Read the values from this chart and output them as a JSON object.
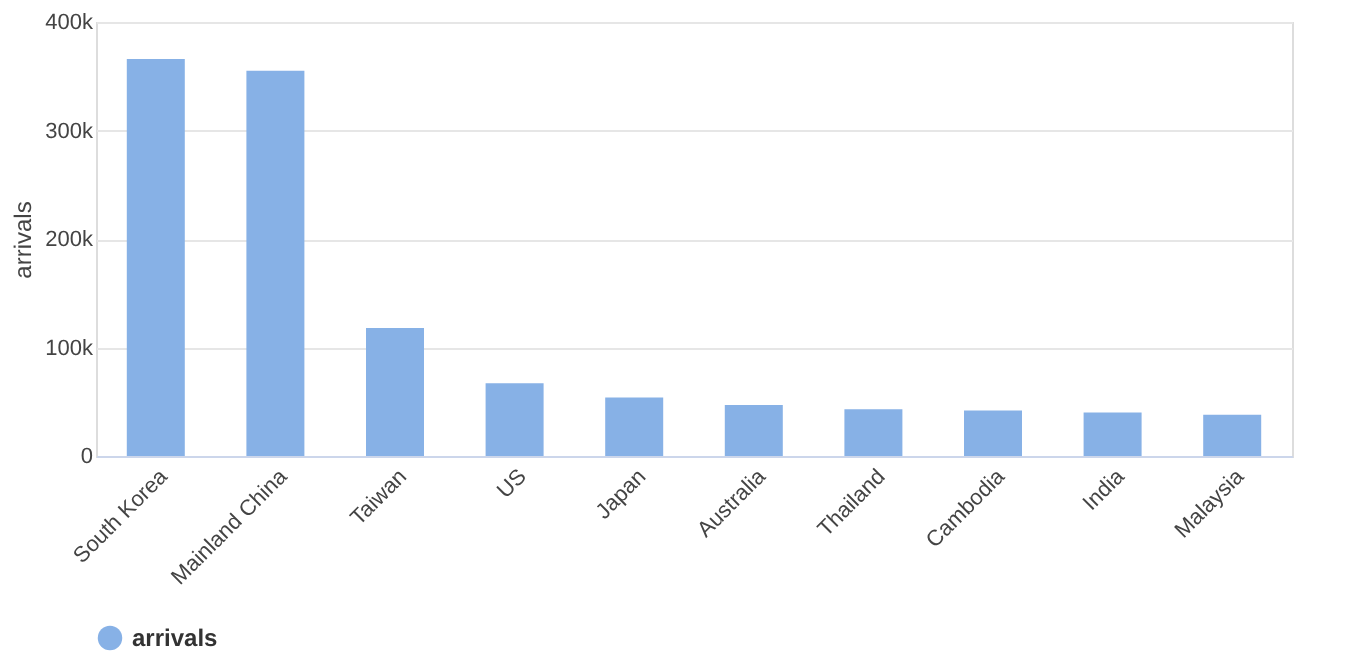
{
  "chart_data": {
    "type": "bar",
    "ylabel": "arrivals",
    "categories": [
      "South Korea",
      "Mainland China",
      "Taiwan",
      "US",
      "Japan",
      "Australia",
      "Thailand",
      "Cambodia",
      "India",
      "Malaysia"
    ],
    "series": [
      {
        "name": "arrivals",
        "color": "#87b1e6",
        "values": [
          366000,
          355000,
          118000,
          67000,
          54000,
          47000,
          43000,
          42000,
          40000,
          38000
        ]
      }
    ],
    "ylim": [
      0,
      400000
    ],
    "yticks": [
      {
        "value": 0,
        "label": "0"
      },
      {
        "value": 100000,
        "label": "100k"
      },
      {
        "value": 200000,
        "label": "200k"
      },
      {
        "value": 300000,
        "label": "300k"
      },
      {
        "value": 400000,
        "label": "400k"
      }
    ],
    "grid": "y",
    "legend": "bottom"
  }
}
